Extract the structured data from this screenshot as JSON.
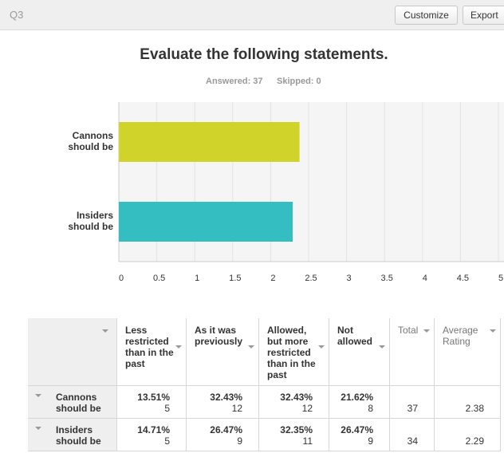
{
  "header": {
    "question": "Q3",
    "buttons": [
      "Customize",
      "Export"
    ]
  },
  "chart_data": {
    "type": "hbar",
    "title": "Evaluate the following statements.",
    "subtitle": [
      "Answered: 37",
      "Skipped: 0"
    ],
    "categories": [
      "Cannons should be",
      "Insiders should be"
    ],
    "values": [
      2.38,
      2.29
    ],
    "colors": [
      "#d0d32a",
      "#35bec1"
    ],
    "xlim": [
      0,
      5
    ],
    "xticks": [
      0,
      0.5,
      1,
      1.5,
      2,
      2.5,
      3,
      3.5,
      4,
      4.5,
      5
    ],
    "grid": true
  },
  "table": {
    "columns": [
      "Less restricted than in the past",
      "As it was previously",
      "Allowed, but more restricted than in the past",
      "Not allowed",
      "Total",
      "Average Rating"
    ],
    "rows": [
      {
        "cells": [
          [
            "13.51%",
            "5"
          ],
          [
            "32.43%",
            "12"
          ],
          [
            "32.43%",
            "12"
          ],
          [
            "21.62%",
            "8"
          ]
        ],
        "total": "37"
      },
      {
        "cells": [
          [
            "14.71%",
            "5"
          ],
          [
            "26.47%",
            "9"
          ],
          [
            "32.35%",
            "11"
          ],
          [
            "26.47%",
            "9"
          ]
        ],
        "total": "34"
      }
    ]
  }
}
